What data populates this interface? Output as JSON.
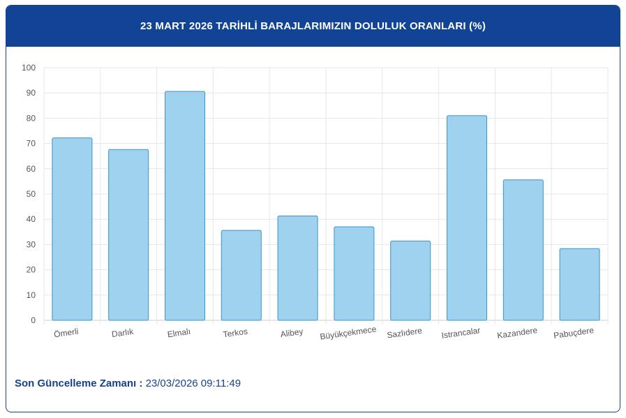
{
  "header": {
    "title": "23 MART 2026 TARİHLİ BARAJLARIMIZIN DOLULUK ORANLARI (%)"
  },
  "footer": {
    "label": "Son Güncelleme Zamanı :",
    "value": "23/03/2026 09:11:49"
  },
  "colors": {
    "header_bg": "#114494",
    "bar_fill": "#9fd2ee",
    "bar_stroke": "#3a94c8",
    "text_accent": "#16428a"
  },
  "chart_data": {
    "type": "bar",
    "title": "23 MART 2026 TARİHLİ BARAJLARIMIZIN DOLULUK ORANLARI (%)",
    "categories": [
      "Ömerli",
      "Darlık",
      "Elmalı",
      "Terkos",
      "Alibey",
      "Büyükçekmece",
      "Sazlıdere",
      "Istrancalar",
      "Kazandere",
      "Pabuçdere"
    ],
    "values": [
      72.2,
      67.6,
      90.6,
      35.6,
      41.3,
      37.0,
      31.4,
      81.0,
      55.6,
      28.4
    ],
    "y_ticks": [
      "0",
      "10",
      "20",
      "30",
      "40",
      "50",
      "60",
      "70",
      "80",
      "90",
      "100"
    ],
    "ylim": [
      0,
      100
    ],
    "grid": true,
    "xlabel": "",
    "ylabel": ""
  }
}
